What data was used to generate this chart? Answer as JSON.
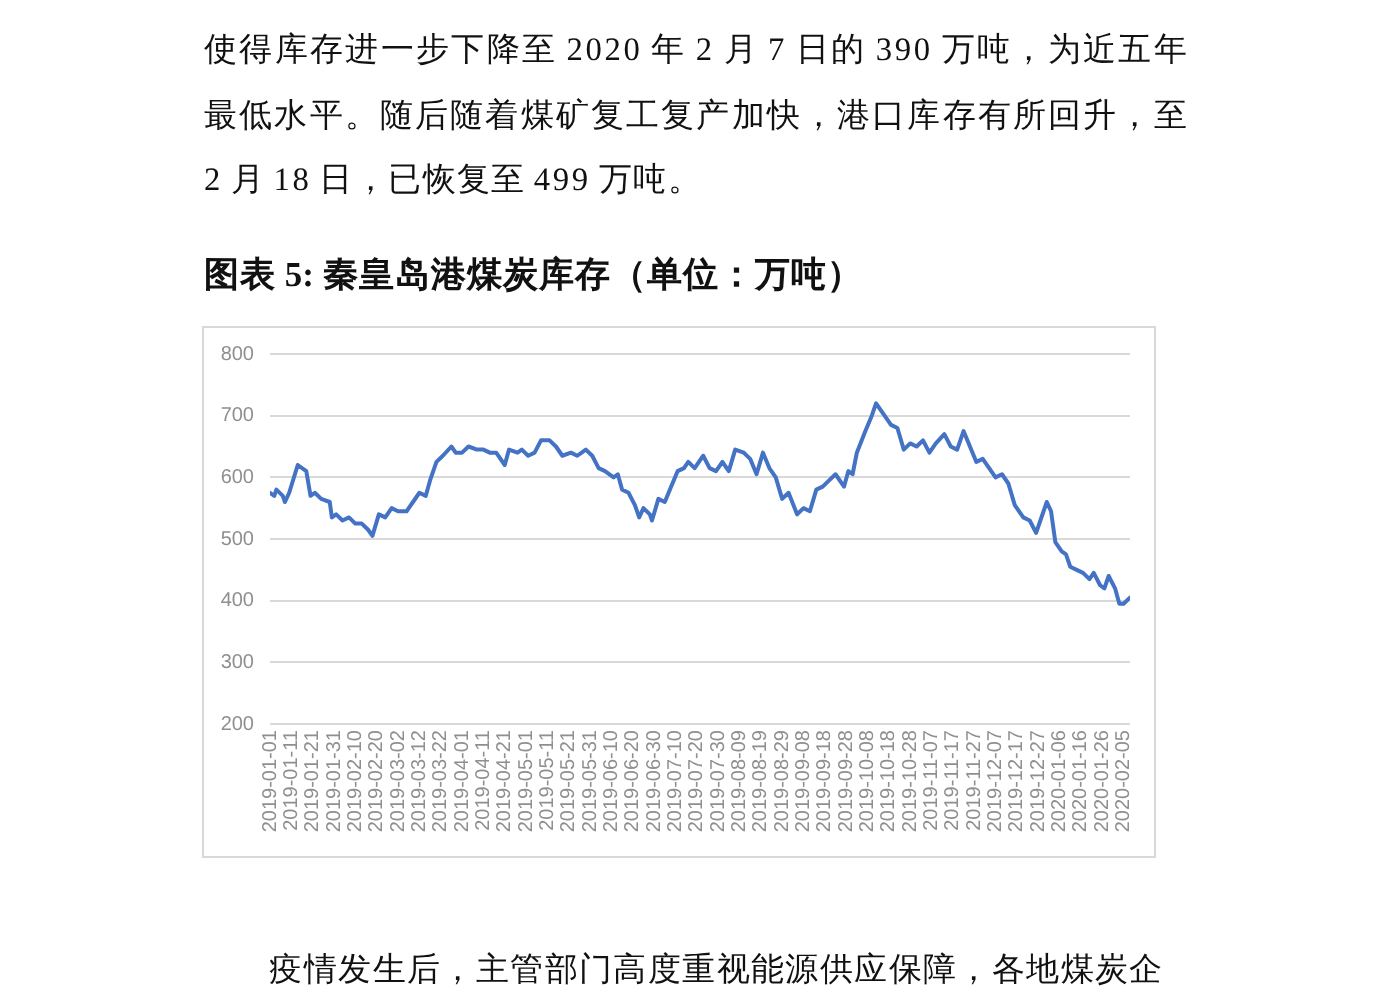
{
  "chart_data": {
    "type": "line",
    "title": "图表 5: 秦皇岛港煤炭库存（单位：万吨）",
    "annotations": [
      "使得库存进一步下降至 2020 年 2 月 7 日的 390 万吨，为近五年最低水平。随后随着煤矿复工复产加快，港口库存有所回升，至 2 月 18 日，已恢复至 499 万吨。",
      "疫情发生后，主管部门高度重视能源供应保障，各地煤炭企"
    ],
    "x": [
      "2019-01-01",
      "2019-01-03",
      "2019-01-04",
      "2019-01-07",
      "2019-01-08",
      "2019-01-10",
      "2019-01-14",
      "2019-01-18",
      "2019-01-20",
      "2019-01-22",
      "2019-01-25",
      "2019-01-29",
      "2019-01-30",
      "2019-02-01",
      "2019-02-04",
      "2019-02-07",
      "2019-02-10",
      "2019-02-13",
      "2019-02-16",
      "2019-02-18",
      "2019-02-21",
      "2019-02-24",
      "2019-02-27",
      "2019-03-02",
      "2019-03-06",
      "2019-03-09",
      "2019-03-12",
      "2019-03-15",
      "2019-03-17",
      "2019-03-20",
      "2019-03-23",
      "2019-03-27",
      "2019-03-29",
      "2019-04-01",
      "2019-04-04",
      "2019-04-08",
      "2019-04-11",
      "2019-04-14",
      "2019-04-17",
      "2019-04-21",
      "2019-04-23",
      "2019-04-27",
      "2019-04-29",
      "2019-05-02",
      "2019-05-05",
      "2019-05-08",
      "2019-05-12",
      "2019-05-15",
      "2019-05-18",
      "2019-05-22",
      "2019-05-25",
      "2019-05-29",
      "2019-06-01",
      "2019-06-04",
      "2019-06-07",
      "2019-06-11",
      "2019-06-13",
      "2019-06-15",
      "2019-06-18",
      "2019-06-21",
      "2019-06-23",
      "2019-06-25",
      "2019-06-28",
      "2019-06-29",
      "2019-07-02",
      "2019-07-05",
      "2019-07-08",
      "2019-07-11",
      "2019-07-14",
      "2019-07-16",
      "2019-07-19",
      "2019-07-21",
      "2019-07-23",
      "2019-07-26",
      "2019-07-29",
      "2019-08-01",
      "2019-08-04",
      "2019-08-07",
      "2019-08-11",
      "2019-08-14",
      "2019-08-17",
      "2019-08-20",
      "2019-08-23",
      "2019-08-26",
      "2019-08-29",
      "2019-09-01",
      "2019-09-05",
      "2019-09-08",
      "2019-09-11",
      "2019-09-14",
      "2019-09-17",
      "2019-09-20",
      "2019-09-23",
      "2019-09-27",
      "2019-09-29",
      "2019-10-01",
      "2019-10-03",
      "2019-10-07",
      "2019-10-10",
      "2019-10-12",
      "2019-10-16",
      "2019-10-19",
      "2019-10-22",
      "2019-10-25",
      "2019-10-28",
      "2019-10-31",
      "2019-11-03",
      "2019-11-06",
      "2019-11-09",
      "2019-11-13",
      "2019-11-16",
      "2019-11-19",
      "2019-11-22",
      "2019-11-25",
      "2019-11-28",
      "2019-12-01",
      "2019-12-04",
      "2019-12-07",
      "2019-12-10",
      "2019-12-13",
      "2019-12-16",
      "2019-12-20",
      "2019-12-23",
      "2019-12-26",
      "2019-12-28",
      "2019-12-31",
      "2020-01-02",
      "2020-01-04",
      "2020-01-07",
      "2020-01-09",
      "2020-01-11",
      "2020-01-14",
      "2020-01-17",
      "2020-01-20",
      "2020-01-22",
      "2020-01-25",
      "2020-01-27",
      "2020-01-29",
      "2020-02-01",
      "2020-02-03",
      "2020-02-05",
      "2020-02-08"
    ],
    "values": [
      575,
      570,
      580,
      570,
      560,
      575,
      620,
      610,
      570,
      575,
      565,
      560,
      535,
      540,
      530,
      535,
      525,
      525,
      515,
      505,
      540,
      535,
      550,
      545,
      545,
      560,
      575,
      570,
      595,
      625,
      635,
      650,
      640,
      640,
      650,
      645,
      645,
      640,
      640,
      620,
      645,
      640,
      645,
      635,
      640,
      660,
      660,
      650,
      635,
      640,
      635,
      645,
      635,
      615,
      610,
      600,
      605,
      580,
      575,
      555,
      535,
      550,
      540,
      530,
      565,
      560,
      585,
      610,
      615,
      625,
      615,
      625,
      635,
      615,
      610,
      625,
      610,
      645,
      640,
      630,
      605,
      640,
      615,
      600,
      565,
      575,
      540,
      550,
      545,
      580,
      585,
      595,
      605,
      585,
      610,
      605,
      640,
      675,
      700,
      720,
      700,
      685,
      680,
      645,
      655,
      650,
      660,
      640,
      655,
      670,
      650,
      645,
      675,
      650,
      625,
      630,
      615,
      600,
      605,
      590,
      555,
      535,
      530,
      510,
      530,
      560,
      545,
      495,
      480,
      475,
      455,
      450,
      445,
      435,
      445,
      425,
      420,
      440,
      420,
      395,
      395,
      405
    ],
    "color": "#4472c4",
    "xlim": [
      "2019-01-01",
      "2020-02-08"
    ],
    "xticks": [
      "2019-01-01",
      "2019-01-11",
      "2019-01-21",
      "2019-01-31",
      "2019-02-10",
      "2019-02-20",
      "2019-03-02",
      "2019-03-12",
      "2019-03-22",
      "2019-04-01",
      "2019-04-11",
      "2019-04-21",
      "2019-05-01",
      "2019-05-11",
      "2019-05-21",
      "2019-05-31",
      "2019-06-10",
      "2019-06-20",
      "2019-06-30",
      "2019-07-10",
      "2019-07-20",
      "2019-07-30",
      "2019-08-09",
      "2019-08-19",
      "2019-08-29",
      "2019-09-08",
      "2019-09-18",
      "2019-09-28",
      "2019-10-08",
      "2019-10-18",
      "2019-10-28",
      "2019-11-07",
      "2019-11-17",
      "2019-11-27",
      "2019-12-07",
      "2019-12-17",
      "2019-12-27",
      "2020-01-06",
      "2020-01-16",
      "2020-01-26",
      "2020-02-05"
    ],
    "ylim": [
      200,
      800
    ],
    "yticks": [
      200,
      300,
      400,
      500,
      600,
      700,
      800
    ],
    "grid": "y"
  }
}
